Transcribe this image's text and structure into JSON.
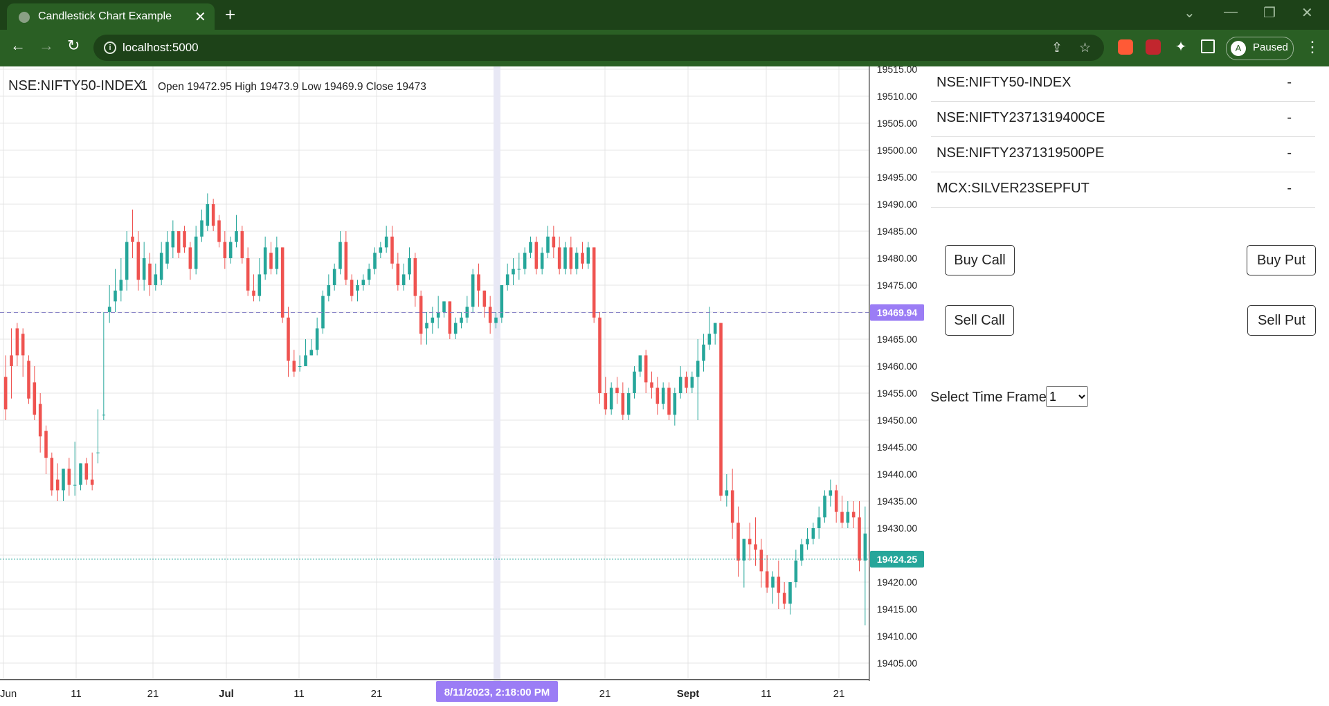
{
  "browser": {
    "tab_title": "Candlestick Chart Example",
    "url": "localhost:5000",
    "profile_initial": "A",
    "profile_status": "Paused"
  },
  "chart": {
    "symbol": "NSE:NIFTY50-INDEX",
    "interval": "1",
    "ohlc": "Open 19472.95 High 19473.9 Low 19469.9 Close 19473",
    "crosshair_price": "19469.94",
    "crosshair_time": "8/11/2023, 2:18:00 PM",
    "last_price": "19424.25",
    "colors": {
      "up": "#26a69a",
      "down": "#ef5350",
      "crosshair_label": "#9b7df5",
      "last_price_label": "#26a69a"
    }
  },
  "chart_data": {
    "type": "candlestick",
    "title": "NSE:NIFTY50-INDEX",
    "y_ticks": [
      "19515.00",
      "19510.00",
      "19505.00",
      "19500.00",
      "19495.00",
      "19490.00",
      "19485.00",
      "19480.00",
      "19475.00",
      "19470.00",
      "19465.00",
      "19460.00",
      "19455.00",
      "19450.00",
      "19445.00",
      "19440.00",
      "19435.00",
      "19430.00",
      "19425.00",
      "19420.00",
      "19415.00",
      "19410.00",
      "19405.00"
    ],
    "x_ticks": [
      "Jun",
      "11",
      "21",
      "Jul",
      "11",
      "21",
      "21",
      "Sept",
      "11",
      "21"
    ],
    "ylim": [
      19401,
      19516
    ],
    "grid": true,
    "bars": [
      [
        19458,
        19462,
        19452,
        19450
      ],
      [
        19462,
        19467,
        19460,
        19454
      ],
      [
        19467,
        19468,
        19462,
        19460
      ],
      [
        19466,
        19467,
        19462,
        19458
      ],
      [
        19461,
        19462,
        19454,
        19453
      ],
      [
        19457,
        19460,
        19451,
        19450
      ],
      [
        19453,
        19455,
        19447,
        19444
      ],
      [
        19448,
        19449,
        19443,
        19440
      ],
      [
        19443,
        19444,
        19437,
        19436
      ],
      [
        19439,
        19442,
        19437,
        19435
      ],
      [
        19437,
        19439,
        19441,
        19435
      ],
      [
        19441,
        19443,
        19438,
        19436
      ],
      [
        19438,
        19446,
        19438,
        19436
      ],
      [
        19438,
        19437,
        19442,
        19437
      ],
      [
        19442,
        19443,
        19439,
        19438
      ],
      [
        19439,
        19444,
        19438,
        19437
      ],
      [
        19444,
        19452,
        19444,
        19442
      ],
      [
        19451,
        19470,
        19451,
        19450
      ],
      [
        19470,
        19475,
        19471,
        19468
      ],
      [
        19472,
        19478,
        19474,
        19470
      ],
      [
        19474,
        19480,
        19476,
        19472
      ],
      [
        19476,
        19485,
        19483,
        19474
      ],
      [
        19484,
        19489,
        19483,
        19480
      ],
      [
        19483,
        19485,
        19476,
        19474
      ],
      [
        19476,
        19483,
        19480,
        19474
      ],
      [
        19479,
        19481,
        19475,
        19473
      ],
      [
        19475,
        19479,
        19477,
        19474
      ],
      [
        19476,
        19483,
        19481,
        19475
      ],
      [
        19479,
        19485,
        19483,
        19478
      ],
      [
        19482,
        19487,
        19485,
        19480
      ],
      [
        19485,
        19484,
        19481,
        19480
      ],
      [
        19485,
        19486,
        19482,
        19481
      ],
      [
        19482,
        19483,
        19478,
        19476
      ],
      [
        19478,
        19486,
        19484,
        19477
      ],
      [
        19484,
        19489,
        19487,
        19483
      ],
      [
        19486,
        19492,
        19490,
        19485
      ],
      [
        19490,
        19491,
        19486,
        19485
      ],
      [
        19487,
        19488,
        19483,
        19482
      ],
      [
        19483,
        19485,
        19480,
        19478
      ],
      [
        19480,
        19484,
        19483,
        19479
      ],
      [
        19483,
        19488,
        19485,
        19482
      ],
      [
        19485,
        19486,
        19480,
        19479
      ],
      [
        19480,
        19482,
        19474,
        19473
      ],
      [
        19474,
        19477,
        19473,
        19472
      ],
      [
        19473,
        19480,
        19477,
        19472
      ],
      [
        19477,
        19484,
        19482,
        19476
      ],
      [
        19481,
        19483,
        19478,
        19477
      ],
      [
        19478,
        19484,
        19482,
        19477
      ],
      [
        19482,
        19481,
        19469,
        19468
      ],
      [
        19469,
        19471,
        19461,
        19458
      ],
      [
        19461,
        19463,
        19459,
        19458
      ],
      [
        19460,
        19462,
        19460,
        19459
      ],
      [
        19460,
        19465,
        19462,
        19461
      ],
      [
        19462,
        19465,
        19463,
        19462
      ],
      [
        19463,
        19469,
        19467,
        19462
      ],
      [
        19467,
        19474,
        19473,
        19466
      ],
      [
        19473,
        19477,
        19475,
        19472
      ],
      [
        19475,
        19479,
        19478,
        19474
      ],
      [
        19478,
        19485,
        19483,
        19477
      ],
      [
        19483,
        19485,
        19476,
        19475
      ],
      [
        19476,
        19477,
        19473,
        19472
      ],
      [
        19474,
        19476,
        19475,
        19472
      ],
      [
        19475,
        19477,
        19476,
        19474
      ],
      [
        19476,
        19479,
        19478,
        19475
      ],
      [
        19478,
        19482,
        19481,
        19477
      ],
      [
        19481,
        19483,
        19482,
        19480
      ],
      [
        19482,
        19486,
        19484,
        19481
      ],
      [
        19484,
        19486,
        19479,
        19478
      ],
      [
        19479,
        19481,
        19475,
        19474
      ],
      [
        19475,
        19479,
        19477,
        19474
      ],
      [
        19477,
        19482,
        19480,
        19476
      ],
      [
        19480,
        19481,
        19473,
        19471
      ],
      [
        19473,
        19474,
        19466,
        19464
      ],
      [
        19467,
        19470,
        19468,
        19464
      ],
      [
        19468,
        19471,
        19469,
        19466
      ],
      [
        19469,
        19473,
        19470,
        19467
      ],
      [
        19470,
        19472,
        19472,
        19469
      ],
      [
        19472,
        19471,
        19466,
        19465
      ],
      [
        19466,
        19469,
        19468,
        19465
      ],
      [
        19468,
        19470,
        19469,
        19467
      ],
      [
        19469,
        19473,
        19471,
        19468
      ],
      [
        19471,
        19478,
        19477,
        19470
      ],
      [
        19477,
        19479,
        19474,
        19471
      ],
      [
        19474,
        19473,
        19471,
        19469
      ],
      [
        19471,
        19473,
        19468,
        19466
      ],
      [
        19468,
        19470,
        19469,
        19467
      ],
      [
        19469,
        19475,
        19475,
        19468
      ],
      [
        19475,
        19479,
        19477,
        19474
      ],
      [
        19477,
        19480,
        19478,
        19475
      ],
      [
        19478,
        19481,
        19478,
        19476
      ],
      [
        19478,
        19482,
        19481,
        19477
      ],
      [
        19481,
        19484,
        19483,
        19480
      ],
      [
        19483,
        19484,
        19478,
        19477
      ],
      [
        19478,
        19482,
        19481,
        19477
      ],
      [
        19481,
        19486,
        19484,
        19480
      ],
      [
        19484,
        19486,
        19482,
        19480
      ],
      [
        19482,
        19484,
        19478,
        19477
      ],
      [
        19478,
        19483,
        19482,
        19477
      ],
      [
        19482,
        19484,
        19478,
        19477
      ],
      [
        19478,
        19482,
        19481,
        19477
      ],
      [
        19481,
        19483,
        19479,
        19478
      ],
      [
        19479,
        19483,
        19482,
        19478
      ],
      [
        19482,
        19482,
        19469,
        19468
      ],
      [
        19469,
        19470,
        19455,
        19453
      ],
      [
        19455,
        19458,
        19452,
        19451
      ],
      [
        19452,
        19457,
        19456,
        19451
      ],
      [
        19456,
        19458,
        19455,
        19453
      ],
      [
        19455,
        19457,
        19451,
        19450
      ],
      [
        19451,
        19456,
        19455,
        19450
      ],
      [
        19455,
        19460,
        19459,
        19454
      ],
      [
        19459,
        19462,
        19462,
        19458
      ],
      [
        19462,
        19463,
        19457,
        19455
      ],
      [
        19457,
        19459,
        19456,
        19454
      ],
      [
        19456,
        19458,
        19453,
        19451
      ],
      [
        19453,
        19457,
        19456,
        19452
      ],
      [
        19456,
        19457,
        19451,
        19450
      ],
      [
        19451,
        19456,
        19455,
        19449
      ],
      [
        19455,
        19460,
        19458,
        19454
      ],
      [
        19458,
        19459,
        19456,
        19455
      ],
      [
        19456,
        19459,
        19458,
        19455
      ],
      [
        19458,
        19465,
        19461,
        19450
      ],
      [
        19461,
        19466,
        19464,
        19459
      ],
      [
        19464,
        19471,
        19466,
        19463
      ],
      [
        19466,
        19468,
        19468,
        19464
      ],
      [
        19468,
        19467,
        19436,
        19435
      ],
      [
        19436,
        19440,
        19437,
        19434
      ],
      [
        19437,
        19441,
        19431,
        19428
      ],
      [
        19431,
        19434,
        19424,
        19421
      ],
      [
        19424,
        19427,
        19428,
        19419
      ],
      [
        19428,
        19431,
        19427,
        19424
      ],
      [
        19427,
        19432,
        19426,
        19423
      ],
      [
        19426,
        19428,
        19422,
        19419
      ],
      [
        19422,
        19425,
        19419,
        19418
      ],
      [
        19419,
        19422,
        19421,
        19416
      ],
      [
        19421,
        19424,
        19418,
        19415
      ],
      [
        19418,
        19420,
        19416,
        19415
      ],
      [
        19416,
        19419,
        19420,
        19414
      ],
      [
        19420,
        19426,
        19424,
        19419
      ],
      [
        19424,
        19428,
        19427,
        19423
      ],
      [
        19427,
        19430,
        19428,
        19426
      ],
      [
        19428,
        19431,
        19430,
        19427
      ],
      [
        19430,
        19434,
        19432,
        19428
      ],
      [
        19432,
        19437,
        19436,
        19431
      ],
      [
        19436,
        19439,
        19437,
        19434
      ],
      [
        19437,
        19438,
        19433,
        19431
      ],
      [
        19433,
        19436,
        19431,
        19430
      ],
      [
        19431,
        19435,
        19433,
        19430
      ],
      [
        19433,
        19435,
        19432,
        19430
      ],
      [
        19432,
        19435,
        19424,
        19422
      ],
      [
        19424,
        19434,
        19429,
        19412
      ]
    ],
    "bar_fields": [
      "open",
      "high",
      "close",
      "low"
    ]
  },
  "panel": {
    "symbols": [
      {
        "name": "NSE:NIFTY50-INDEX",
        "price": "-"
      },
      {
        "name": "NSE:NIFTY2371319400CE",
        "price": "-"
      },
      {
        "name": "NSE:NIFTY2371319500PE",
        "price": "-"
      },
      {
        "name": "MCX:SILVER23SEPFUT",
        "price": "-"
      }
    ],
    "buttons": {
      "buy_call": "Buy Call",
      "buy_put": "Buy Put",
      "sell_call": "Sell Call",
      "sell_put": "Sell Put"
    },
    "timeframe_label": "Select Time Frame",
    "timeframe_value": "1"
  }
}
